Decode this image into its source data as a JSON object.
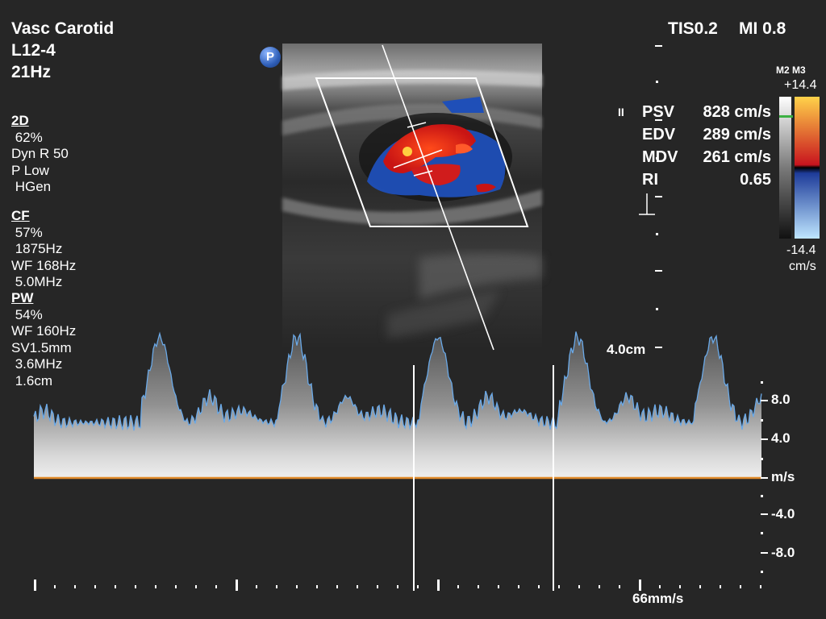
{
  "header": {
    "exam": "Vasc Carotid",
    "probe": "L12-4",
    "frame_rate": "21Hz",
    "tis": "TIS0.2",
    "mi": "MI 0.8",
    "p_badge": "P"
  },
  "params": {
    "twod": {
      "title": "2D",
      "lines": [
        " 62%",
        "Dyn R 50",
        "P Low",
        " HGen"
      ]
    },
    "cf": {
      "title": "CF",
      "lines": [
        " 57%",
        " 1875Hz",
        "WF 168Hz",
        " 5.0MHz"
      ]
    },
    "pw": {
      "title": "PW",
      "lines": [
        " 54%",
        "WF 160Hz",
        "SV1.5mm",
        " 3.6MHz",
        " 1.6cm"
      ]
    }
  },
  "measurements": [
    {
      "label": "PSV",
      "value": "828 cm/s"
    },
    {
      "label": "EDV",
      "value": "289 cm/s"
    },
    {
      "label": "MDV",
      "value": "261 cm/s"
    },
    {
      "label": "RI",
      "value": "0.65"
    }
  ],
  "meas_marker": "II",
  "colorbar": {
    "map_label": "M2 M3",
    "max": "+14.4",
    "min": "-14.4",
    "unit": "cm/s",
    "colors": {
      "top": "#ffd24a",
      "mid_pos": "#c8141e",
      "mid_neg": "#1e3c9a",
      "bottom": "#bfe6ff"
    }
  },
  "depth": {
    "label": "4.0cm"
  },
  "spectral": {
    "scale_labels": [
      "8.0",
      "4.0",
      "m/s",
      "-4.0",
      "-8.0"
    ],
    "sweep_speed": "66mm/s",
    "baseline_color": "#e08a2a",
    "envelope_color": "#6aa9e8"
  }
}
